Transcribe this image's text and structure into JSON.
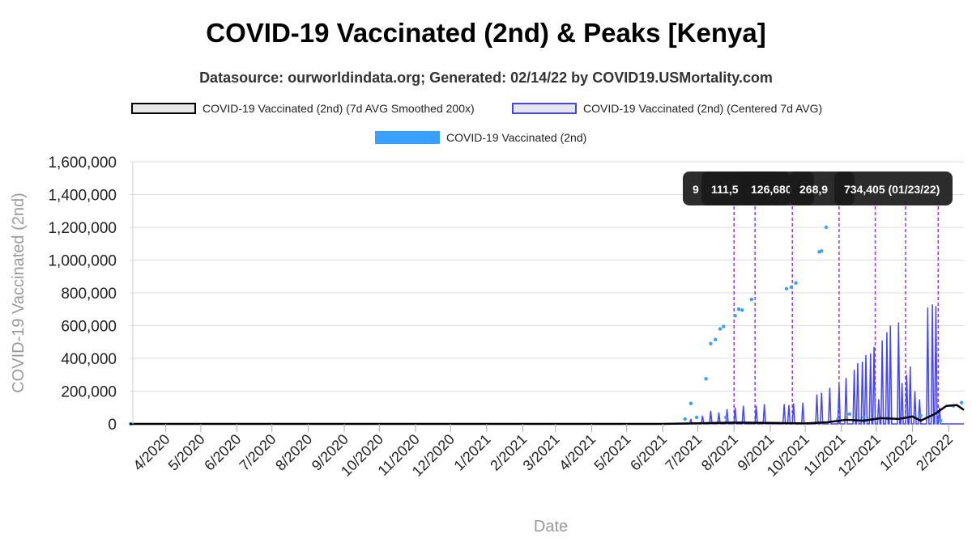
{
  "chart_data": {
    "type": "line",
    "title": "COVID-19 Vaccinated (2nd) & Peaks [Kenya]",
    "subtitle": "Datasource: ourworldindata.org; Generated: 02/14/22 by COVID19.USMortality.com",
    "xlabel": "Date",
    "ylabel": "COVID-19 Vaccinated (2nd)",
    "ylim": [
      0,
      1600000
    ],
    "xlim": [
      "2020-03-01",
      "2022-02-14"
    ],
    "y_ticks": [
      "0",
      "200,000",
      "400,000",
      "600,000",
      "800,000",
      "1,000,000",
      "1,200,000",
      "1,400,000",
      "1,600,000"
    ],
    "y_tick_values": [
      0,
      200000,
      400000,
      600000,
      800000,
      1000000,
      1200000,
      1400000,
      1600000
    ],
    "x_ticks": [
      "4/2020",
      "5/2020",
      "6/2020",
      "7/2020",
      "8/2020",
      "9/2020",
      "10/2020",
      "11/2020",
      "12/2020",
      "1/2021",
      "2/2021",
      "3/2021",
      "4/2021",
      "5/2021",
      "6/2021",
      "7/2021",
      "8/2021",
      "9/2021",
      "10/2021",
      "11/2021",
      "12/2021",
      "1/2022",
      "2/2022"
    ],
    "x_tick_dates": [
      "2020-04-01",
      "2020-05-01",
      "2020-06-01",
      "2020-07-01",
      "2020-08-01",
      "2020-09-01",
      "2020-10-01",
      "2020-11-01",
      "2020-12-01",
      "2021-01-01",
      "2021-02-01",
      "2021-03-01",
      "2021-04-01",
      "2021-05-01",
      "2021-06-01",
      "2021-07-01",
      "2021-08-01",
      "2021-09-01",
      "2021-10-01",
      "2021-11-01",
      "2021-12-01",
      "2022-01-01",
      "2022-02-01"
    ],
    "grid": true,
    "legend_position": "top",
    "series": [
      {
        "name": "COVID-19 Vaccinated (2nd) (7d AVG Smoothed 200x)",
        "color": "#000000",
        "style": "line",
        "x": [
          "2020-03-01",
          "2021-06-01",
          "2021-07-01",
          "2021-08-01",
          "2021-09-01",
          "2021-10-01",
          "2021-10-20",
          "2021-11-05",
          "2021-11-20",
          "2021-12-05",
          "2021-12-20",
          "2022-01-01",
          "2022-01-08",
          "2022-01-20",
          "2022-01-30",
          "2022-02-08",
          "2022-02-14"
        ],
        "values": [
          0,
          0,
          4000,
          8000,
          6000,
          3000,
          10000,
          25000,
          20000,
          35000,
          30000,
          45000,
          20000,
          60000,
          110000,
          115000,
          85000
        ]
      },
      {
        "name": "COVID-19 Vaccinated (2nd) (Centered 7d AVG)",
        "color": "#4444ff",
        "style": "spikes",
        "x": [
          "2021-06-25",
          "2021-07-05",
          "2021-07-12",
          "2021-07-19",
          "2021-07-26",
          "2021-08-02",
          "2021-08-09",
          "2021-08-20",
          "2021-08-27",
          "2021-09-13",
          "2021-09-17",
          "2021-09-21",
          "2021-09-29",
          "2021-10-11",
          "2021-10-15",
          "2021-10-22",
          "2021-10-30",
          "2021-11-05",
          "2021-11-12",
          "2021-11-15",
          "2021-11-19",
          "2021-11-22",
          "2021-11-26",
          "2021-11-29",
          "2021-12-03",
          "2021-12-06",
          "2021-12-10",
          "2021-12-13",
          "2021-12-20",
          "2021-12-23",
          "2021-12-27",
          "2021-12-30",
          "2022-01-03",
          "2022-01-07",
          "2022-01-14",
          "2022-01-18",
          "2022-01-21",
          "2022-01-24"
        ],
        "values": [
          30000,
          50000,
          80000,
          70000,
          90000,
          100000,
          110000,
          110000,
          120000,
          120000,
          115000,
          125000,
          130000,
          180000,
          190000,
          220000,
          240000,
          280000,
          330000,
          370000,
          380000,
          420000,
          430000,
          470000,
          150000,
          510000,
          560000,
          600000,
          620000,
          250000,
          300000,
          350000,
          200000,
          150000,
          710000,
          730000,
          720000,
          100000
        ]
      },
      {
        "name": "COVID-19 Vaccinated (2nd)",
        "color": "#3aa0ff",
        "style": "points",
        "x": [
          "2020-03-02",
          "2021-06-20",
          "2021-06-25",
          "2021-06-30",
          "2021-07-08",
          "2021-07-12",
          "2021-07-16",
          "2021-07-20",
          "2021-07-23",
          "2021-07-25",
          "2021-08-02",
          "2021-08-05",
          "2021-08-08",
          "2021-08-16",
          "2021-09-15",
          "2021-09-19",
          "2021-09-23",
          "2021-10-13",
          "2021-10-15",
          "2021-10-19",
          "2021-10-29",
          "2021-11-08",
          "2021-11-20",
          "2021-12-10",
          "2022-01-08",
          "2022-01-25",
          "2022-02-05",
          "2022-02-12"
        ],
        "values": [
          0,
          30000,
          125000,
          40000,
          275000,
          490000,
          515000,
          580000,
          595000,
          40000,
          660000,
          700000,
          695000,
          760000,
          825000,
          835000,
          860000,
          1050000,
          1055000,
          1200000,
          30000,
          60000,
          40000,
          35000,
          50000,
          20000,
          110000,
          130000
        ]
      }
    ],
    "peak_lines": [
      "2021-08-01",
      "2021-08-19",
      "2021-09-20",
      "2021-10-30",
      "2021-11-30",
      "2021-12-26",
      "2022-01-23"
    ],
    "annotations": [
      "9",
      "111,5",
      "126,680",
      "268,9",
      "734,405 (01/23/22)"
    ]
  }
}
